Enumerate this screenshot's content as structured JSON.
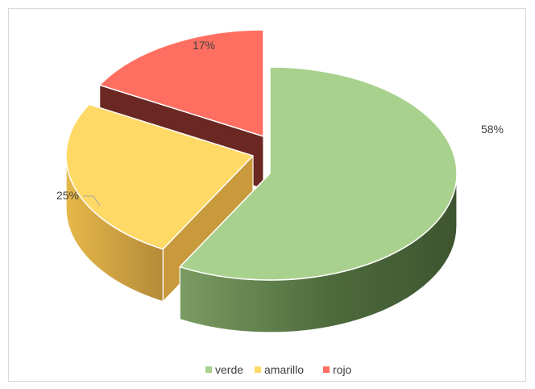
{
  "chart_data": {
    "type": "pie",
    "style": "3d-exploded",
    "categories": [
      "verde",
      "amarillo",
      "rojo"
    ],
    "values": [
      58,
      25,
      17
    ],
    "labels": [
      "58%",
      "25%",
      "17%"
    ],
    "colors": [
      "#a9d18e",
      "#ffd966",
      "#ff6f61"
    ],
    "side_colors": [
      "#5b7c47",
      "#c89a3c",
      "#6b2722"
    ],
    "title": "",
    "legend_position": "bottom"
  }
}
